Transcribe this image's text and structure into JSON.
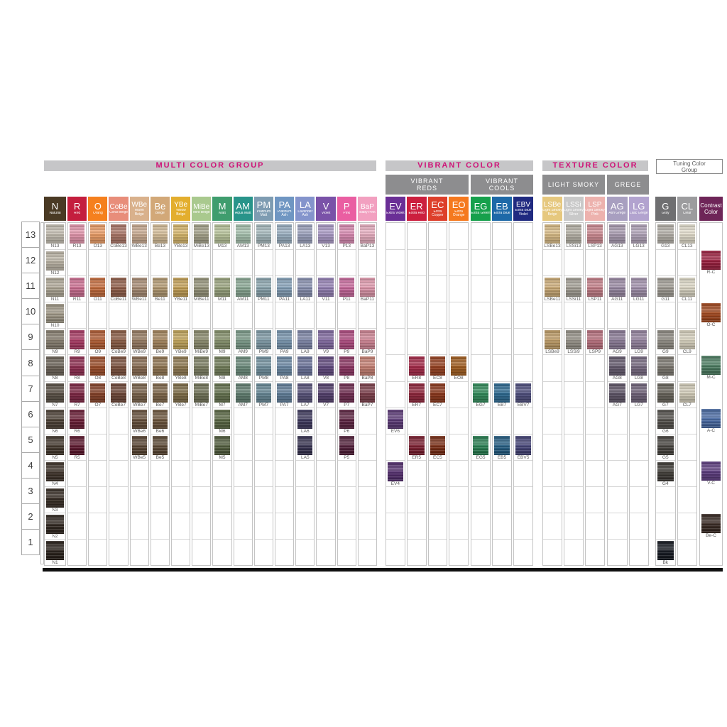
{
  "titles": {
    "multi": "MULTI COLOR GROUP",
    "vibrant": "VIBRANT COLOR",
    "texture": "TEXTURE COLOR",
    "tuning_line1": "Tuning Color",
    "tuning_line2": "Group",
    "reds_1": "VIBRANT",
    "reds_2": "REDS",
    "cools_1": "VIBRANT",
    "cools_2": "COOLS",
    "smoky": "LIGHT SMOKY",
    "grege": "GREGE"
  },
  "accent": {
    "magenta": "#cf1378",
    "band_light": "#c6c6c8",
    "band_dark": "#8d8d8f"
  },
  "rows": [
    13,
    12,
    11,
    10,
    9,
    8,
    7,
    6,
    5,
    4,
    3,
    2,
    1
  ],
  "groups": [
    {
      "id": "natural",
      "cols": [
        {
          "code": "N",
          "name": "Natural",
          "hbg": "#4a3a24",
          "cells": [
            [
              13,
              "N13",
              "#c3bdb0"
            ],
            [
              12,
              "N12",
              "#bcb5a6"
            ],
            [
              11,
              "N11",
              "#b1a998"
            ],
            [
              10,
              "N10",
              "#a29a89"
            ],
            [
              9,
              "N9",
              "#877e6f"
            ],
            [
              8,
              "N8",
              "#6b6257"
            ],
            [
              7,
              "N7",
              "#584f44"
            ],
            [
              6,
              "N6",
              "#4e4237"
            ],
            [
              5,
              "N5",
              "#453a2f"
            ],
            [
              4,
              "N4",
              "#3e332a"
            ],
            [
              3,
              "N3",
              "#372d25"
            ],
            [
              2,
              "N2",
              "#312821"
            ],
            [
              1,
              "N1",
              "#2a221c"
            ]
          ]
        }
      ]
    },
    {
      "id": "multi",
      "cols": [
        {
          "code": "R",
          "name": "Red",
          "hbg": "#c41e3e",
          "cells": [
            [
              13,
              "R13",
              "#e495ac"
            ],
            [
              11,
              "R11",
              "#ce6f92"
            ],
            [
              9,
              "R9",
              "#ab3a64"
            ],
            [
              8,
              "R8",
              "#8f2c50"
            ],
            [
              7,
              "R7",
              "#7d2442"
            ],
            [
              6,
              "R6",
              "#6c1e37"
            ],
            [
              5,
              "R5",
              "#5e192f"
            ]
          ]
        },
        {
          "code": "O",
          "name": "Orang",
          "hbg": "#f5801e",
          "cells": [
            [
              13,
              "O13",
              "#ec9c64"
            ],
            [
              11,
              "O11",
              "#c66c3c"
            ],
            [
              9,
              "O9",
              "#b25c32"
            ],
            [
              8,
              "O8",
              "#9c4c28"
            ],
            [
              7,
              "O7",
              "#854026"
            ]
          ]
        },
        {
          "code": "CoBe",
          "name": "Coral Beige",
          "hbg": "#e88d7a",
          "cells": [
            [
              13,
              "CoBe13",
              "#aa7465"
            ],
            [
              11,
              "CoBe11",
              "#925f4a"
            ],
            [
              9,
              "CoBe9",
              "#8c5c44"
            ],
            [
              8,
              "CoBe8",
              "#7c513d"
            ],
            [
              7,
              "CoBe7",
              "#6d4636"
            ]
          ]
        },
        {
          "code": "WBe",
          "name": "Warm Beige",
          "hbg": "#d9b18c",
          "cells": [
            [
              13,
              "WBe13",
              "#c9aa90"
            ],
            [
              11,
              "WBe11",
              "#a98d75"
            ],
            [
              9,
              "WBe9",
              "#977b61"
            ],
            [
              8,
              "WBe8",
              "#876a50"
            ],
            [
              7,
              "WBe7",
              "#786149"
            ],
            [
              6,
              "WBe6",
              "#69523d"
            ],
            [
              5,
              "WBe5",
              "#5b4735"
            ]
          ]
        },
        {
          "code": "Be",
          "name": "Beige",
          "hbg": "#d2a878",
          "cells": [
            [
              13,
              "Be13",
              "#d5bd97"
            ],
            [
              11,
              "Be11",
              "#b49a72"
            ],
            [
              9,
              "Be9",
              "#a5855c"
            ],
            [
              8,
              "Be8",
              "#907450"
            ],
            [
              7,
              "Be7",
              "#7e6548"
            ],
            [
              6,
              "Be6",
              "#6f573e"
            ],
            [
              5,
              "Be5",
              "#5e4b37"
            ]
          ]
        },
        {
          "code": "YBe",
          "name": "Yellow Beige",
          "hbg": "#e3ae2e",
          "cells": [
            [
              13,
              "YBe13",
              "#d7b669"
            ],
            [
              11,
              "YBe11",
              "#c5a156"
            ],
            [
              9,
              "YBe9",
              "#c3a65a"
            ],
            [
              8,
              "YBe8",
              "#8f7950"
            ],
            [
              7,
              "YBe7",
              "#7d6b45"
            ]
          ]
        },
        {
          "code": "MiBe",
          "name": "Mint Beige",
          "hbg": "#a9c98e",
          "cells": [
            [
              13,
              "MiBe13",
              "#a4a189"
            ],
            [
              11,
              "MiBe11",
              "#97957b"
            ],
            [
              9,
              "MiBe9",
              "#8b8b6d"
            ],
            [
              8,
              "MiBe8",
              "#7d7f63"
            ],
            [
              7,
              "MiBe7",
              "#6f7155"
            ]
          ]
        },
        {
          "code": "M",
          "name": "Matt",
          "hbg": "#3f9d6e",
          "cells": [
            [
              13,
              "M13",
              "#b7c399"
            ],
            [
              11,
              "M11",
              "#9ba57f"
            ],
            [
              9,
              "M9",
              "#85916b"
            ],
            [
              8,
              "M8",
              "#717d59"
            ],
            [
              7,
              "M7",
              "#63714d"
            ],
            [
              6,
              "M6",
              "#5b6945"
            ],
            [
              5,
              "M5",
              "#535f3f"
            ]
          ]
        },
        {
          "code": "AM",
          "name": "Aqua Matt",
          "hbg": "#28948a",
          "cells": [
            [
              13,
              "AM13",
              "#a5c1ad"
            ],
            [
              11,
              "AM11",
              "#8ba995"
            ],
            [
              9,
              "AM9",
              "#7b9b89"
            ],
            [
              8,
              "AM8",
              "#6b8b7b"
            ],
            [
              7,
              "AM7",
              "#5f7d6f"
            ]
          ]
        },
        {
          "code": "PM",
          "name": "Platinum Matt",
          "hbg": "#7e9cb2",
          "cells": [
            [
              13,
              "PM13",
              "#a5b9bd"
            ],
            [
              11,
              "PM11",
              "#8ba5af"
            ],
            [
              9,
              "PM9",
              "#7f9ba7"
            ],
            [
              8,
              "PM8",
              "#71919f"
            ],
            [
              7,
              "PM7",
              "#658795"
            ]
          ]
        },
        {
          "code": "PA",
          "name": "Platinum Ash",
          "hbg": "#6f96c2",
          "cells": [
            [
              13,
              "PA13",
              "#99afc1"
            ],
            [
              11,
              "PA11",
              "#85a1b9"
            ],
            [
              9,
              "PA9",
              "#7795af"
            ],
            [
              8,
              "PA8",
              "#6b89a5"
            ],
            [
              7,
              "PA7",
              "#5f7d99"
            ]
          ]
        },
        {
          "code": "LA",
          "name": "Lavender Ash",
          "hbg": "#8494cc",
          "cells": [
            [
              13,
              "LA13",
              "#9ba1bd"
            ],
            [
              11,
              "LA11",
              "#8991b1"
            ],
            [
              9,
              "LA9",
              "#7d85a7"
            ],
            [
              8,
              "LA8",
              "#6b739b"
            ],
            [
              7,
              "LA7",
              "#565179"
            ],
            [
              6,
              "LA6",
              "#3f3a5e"
            ],
            [
              5,
              "LA5",
              "#383452"
            ]
          ]
        },
        {
          "code": "V",
          "name": "Violet",
          "hbg": "#7a52a8",
          "cells": [
            [
              13,
              "V13",
              "#a998c5"
            ],
            [
              11,
              "V11",
              "#9581b5"
            ],
            [
              9,
              "V9",
              "#8169a1"
            ],
            [
              8,
              "V8",
              "#61497f"
            ],
            [
              7,
              "V7",
              "#513d6b"
            ]
          ]
        },
        {
          "code": "P",
          "name": "Pink",
          "hbg": "#ea5ea2",
          "cells": [
            [
              13,
              "P13",
              "#d989b1"
            ],
            [
              11,
              "P11",
              "#c9699d"
            ],
            [
              9,
              "P9",
              "#b14b81"
            ],
            [
              8,
              "P8",
              "#8d3563"
            ],
            [
              7,
              "P7",
              "#6f2b4f"
            ],
            [
              6,
              "P6",
              "#5f2543"
            ],
            [
              5,
              "P5",
              "#53203b"
            ]
          ]
        },
        {
          "code": "BaP",
          "name": "Baby Pink",
          "hbg": "#f2a0c0",
          "cells": [
            [
              13,
              "BaP13",
              "#e9afc1"
            ],
            [
              11,
              "BaP11",
              "#e199ad"
            ],
            [
              9,
              "BaP9",
              "#d18595"
            ],
            [
              8,
              "BaP8",
              "#c67f72"
            ],
            [
              7,
              "BaP7",
              "#7b3d49"
            ]
          ]
        }
      ]
    },
    {
      "id": "reds",
      "cols": [
        {
          "code": "EV",
          "name": "Extra Violet",
          "hbg": "#6a2f96",
          "cells": [
            [
              6,
              "EV6",
              "#5d3b79"
            ],
            [
              4,
              "EV4",
              "#542f6f"
            ]
          ]
        },
        {
          "code": "ER",
          "name": "Extra Red",
          "hbg": "#cc1f3e",
          "cells": [
            [
              8,
              "ER8",
              "#a52847"
            ],
            [
              7,
              "ER7",
              "#8f2339"
            ],
            [
              5,
              "ER5",
              "#7d1f31"
            ]
          ]
        },
        {
          "code": "EC",
          "name": "Extra Copper",
          "hbg": "#dd3f2a",
          "cells": [
            [
              8,
              "EC8",
              "#97401f"
            ],
            [
              7,
              "EC7",
              "#8b3518"
            ],
            [
              5,
              "EC5",
              "#7b2f17"
            ]
          ]
        },
        {
          "code": "EO",
          "name": "Extra Orange",
          "hbg": "#f5791e",
          "cells": [
            [
              8,
              "EO8",
              "#a25d1e"
            ]
          ]
        }
      ]
    },
    {
      "id": "cools",
      "cols": [
        {
          "code": "EG",
          "name": "Extra Green",
          "hbg": "#16a04c",
          "cells": [
            [
              7,
              "EG7",
              "#2f8b59"
            ],
            [
              5,
              "EG5",
              "#298153"
            ]
          ]
        },
        {
          "code": "EB",
          "name": "Extra Blue",
          "hbg": "#1d69a8",
          "cells": [
            [
              7,
              "EB7",
              "#2b6991"
            ],
            [
              5,
              "EB5",
              "#265f85"
            ]
          ]
        },
        {
          "code": "EBV",
          "name": "Extra Blue Violet",
          "hbg": "#202a80",
          "cells": [
            [
              7,
              "EBV7",
              "#4d4d7d"
            ],
            [
              5,
              "EBV5",
              "#464579"
            ]
          ]
        }
      ]
    },
    {
      "id": "smoky",
      "cols": [
        {
          "code": "LSBe",
          "name": "Light Smoky Beige",
          "hbg": "#e6c87e",
          "cells": [
            [
              13,
              "LSBe13",
              "#d9bb85"
            ],
            [
              11,
              "LSBe11",
              "#cdac77"
            ],
            [
              9,
              "LSBe9",
              "#c09d67"
            ]
          ]
        },
        {
          "code": "LSSi",
          "name": "Light Smoky Silver",
          "hbg": "#c9c9c9",
          "cells": [
            [
              13,
              "LSSi13",
              "#b5b1a5"
            ],
            [
              11,
              "LSSi11",
              "#a5a197"
            ],
            [
              9,
              "LSSi9",
              "#979389"
            ]
          ]
        },
        {
          "code": "LSP",
          "name": "Light Smoky Pink",
          "hbg": "#edb2ae",
          "cells": [
            [
              13,
              "LSP13",
              "#cd8991"
            ],
            [
              11,
              "LSP11",
              "#c57f89"
            ],
            [
              9,
              "LSP9",
              "#b96f7d"
            ]
          ]
        }
      ]
    },
    {
      "id": "grege",
      "cols": [
        {
          "code": "AG",
          "name": "Ash Grege",
          "hbg": "#a89fc0",
          "cells": [
            [
              13,
              "AG13",
              "#a99bb1"
            ],
            [
              11,
              "AG11",
              "#9b8ba5"
            ],
            [
              9,
              "AG9",
              "#8b7b97"
            ],
            [
              8,
              "AG8",
              "#645a6e"
            ],
            [
              7,
              "AG7",
              "#5d5366"
            ]
          ]
        },
        {
          "code": "LG",
          "name": "Lilac Grege",
          "hbg": "#b2a3cf",
          "cells": [
            [
              13,
              "LG13",
              "#b1a3b9"
            ],
            [
              11,
              "LG11",
              "#a392ad"
            ],
            [
              9,
              "LG9",
              "#95839f"
            ],
            [
              8,
              "LG8",
              "#776a81"
            ],
            [
              7,
              "LG7",
              "#6e6178"
            ]
          ]
        }
      ]
    },
    {
      "id": "gcl",
      "cols": [
        {
          "code": "G",
          "name": "Gray",
          "hbg": "#6f6f71",
          "cells": [
            [
              13,
              "G13",
              "#b3afa7"
            ],
            [
              11,
              "G11",
              "#a19d95"
            ],
            [
              9,
              "G9",
              "#8f8b83"
            ],
            [
              8,
              "G8",
              "#7b776f"
            ],
            [
              7,
              "G7",
              "#666259"
            ],
            [
              6,
              "G6",
              "#54514c"
            ],
            [
              5,
              "G5",
              "#484540"
            ],
            [
              4,
              "G4",
              "#3e3b36"
            ],
            [
              1,
              "Bk",
              "#161a22"
            ]
          ]
        },
        {
          "code": "CL",
          "name": "Clear",
          "hbg": "#9c9c9e",
          "cells": [
            [
              13,
              "CL13",
              "#e3decd"
            ],
            [
              11,
              "CL11",
              "#ded9c7"
            ],
            [
              9,
              "CL9",
              "#d9d3bf"
            ],
            [
              7,
              "CL7",
              "#d3cdb9"
            ]
          ]
        }
      ]
    },
    {
      "id": "contrast",
      "cols": [
        {
          "code": "",
          "name": "Contrast Color",
          "hbg": "#6e2558, ",
          "nodiv": true,
          "cells": [
            [
              12,
              "R-C",
              "#9e2040"
            ],
            [
              10,
              "O-C",
              "#a4481e"
            ],
            [
              8,
              "M-C",
              "#4e7f63"
            ],
            [
              6,
              "A-C",
              "#4a6ca6"
            ],
            [
              4,
              "V-C",
              "#5d3c80"
            ],
            [
              2,
              "Be-C",
              "#392a24"
            ]
          ]
        }
      ]
    }
  ]
}
